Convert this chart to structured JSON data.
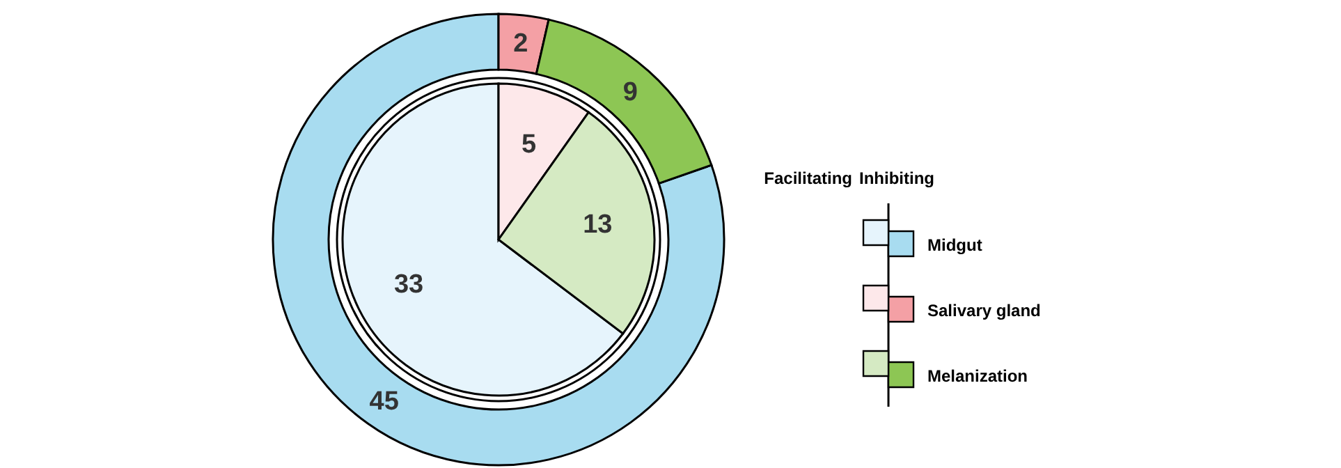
{
  "chart_data": {
    "type": "donut",
    "categories": [
      "Midgut",
      "Salivary gland",
      "Melanization"
    ],
    "series": [
      {
        "name": "Inhibiting",
        "values": [
          45,
          2,
          9
        ],
        "colors": [
          "#a8dcf0",
          "#f4a0a5",
          "#8dc654"
        ]
      },
      {
        "name": "Facilitating",
        "values": [
          33,
          5,
          13
        ],
        "colors": [
          "#e6f4fc",
          "#fde8ea",
          "#d5eac3"
        ]
      }
    ],
    "data_labels": true,
    "legend": "right"
  }
}
